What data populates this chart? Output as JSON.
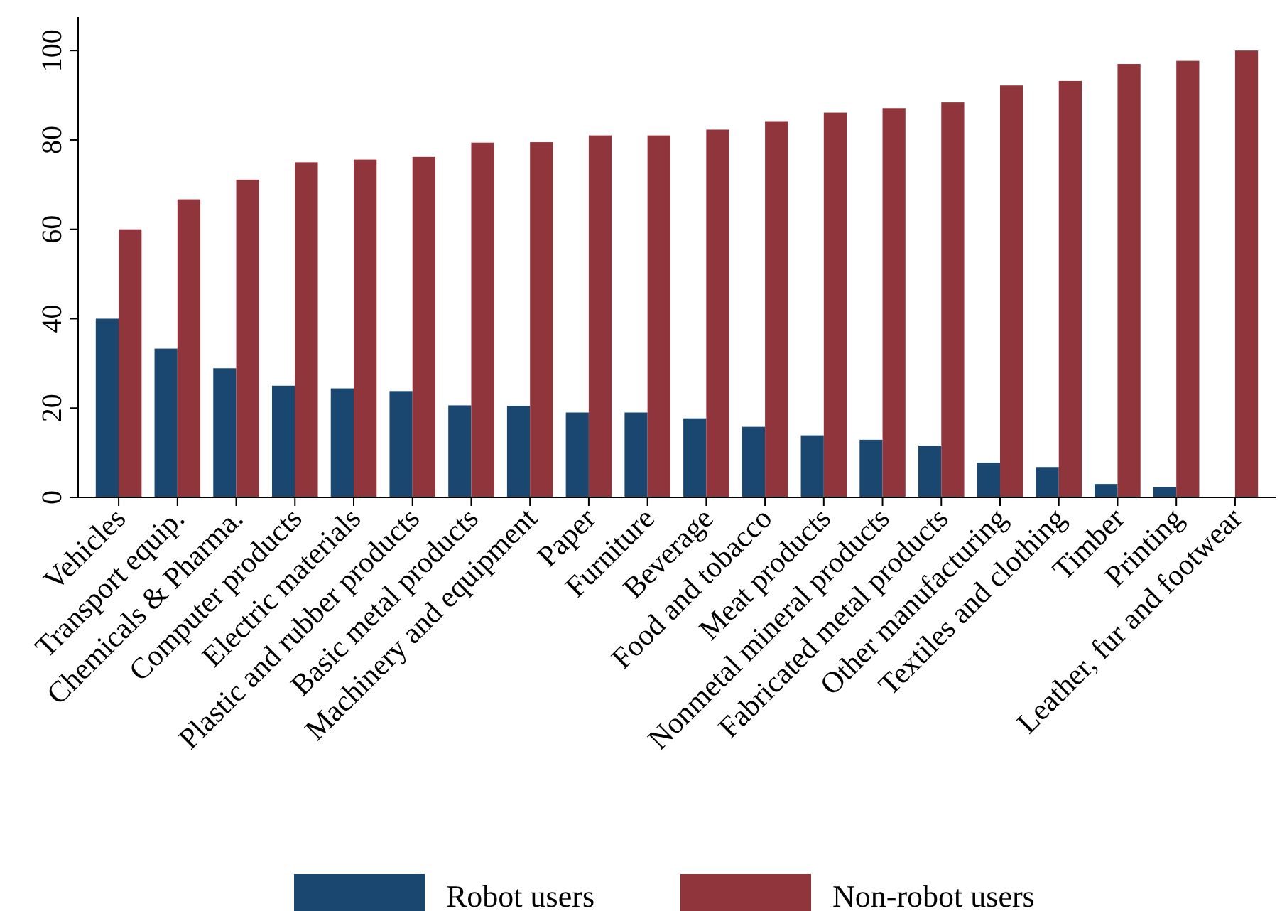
{
  "chart_data": {
    "type": "bar",
    "categories": [
      "Vehicles",
      "Transport equip.",
      "Chemicals & Pharma.",
      "Computer products",
      "Electric materials",
      "Plastic and rubber products",
      "Basic metal products",
      "Machinery and equipment",
      "Paper",
      "Furniture",
      "Beverage",
      "Food and tobacco",
      "Meat products",
      "Nonmetal mineral products",
      "Fabricated metal products",
      "Other manufacturing",
      "Textiles and clothing",
      "Timber",
      "Printing",
      "Leather, fur and footwear"
    ],
    "series": [
      {
        "name": "Robot users",
        "color": "#1a476f",
        "values": [
          40,
          33.3,
          28.9,
          25,
          24.4,
          23.8,
          20.6,
          20.5,
          19,
          19,
          17.7,
          15.8,
          13.9,
          12.9,
          11.6,
          7.8,
          6.8,
          3,
          2.3,
          0
        ]
      },
      {
        "name": "Non-robot users",
        "color": "#90353b",
        "values": [
          60,
          66.7,
          71.1,
          75,
          75.6,
          76.2,
          79.4,
          79.5,
          81,
          81,
          82.3,
          84.2,
          86.1,
          87.1,
          88.4,
          92.2,
          93.2,
          97,
          97.7,
          100
        ]
      }
    ],
    "ylim": [
      0,
      107.5
    ],
    "yticks": [
      0,
      20,
      40,
      60,
      80,
      100
    ],
    "grid": false,
    "legend": "bottom"
  }
}
